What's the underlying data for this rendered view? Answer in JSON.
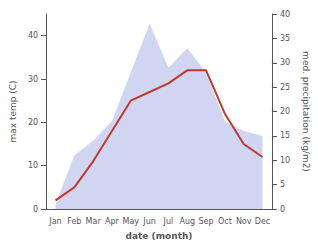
{
  "chart_data": {
    "type": "line",
    "xlabel": "date (month)",
    "ylabel": "max temp (C)",
    "y2label": "med. precipitation (kg/m2)",
    "categories": [
      "Jan",
      "Feb",
      "Mar",
      "Apr",
      "May",
      "Jun",
      "Jul",
      "Aug",
      "Sep",
      "Oct",
      "Nov",
      "Dec"
    ],
    "series": [
      {
        "type": "area",
        "axis": "y2",
        "color": "#aab4e8",
        "values": [
          1,
          11,
          14,
          18,
          28,
          38,
          29,
          33,
          28,
          18,
          16,
          15
        ]
      },
      {
        "type": "line",
        "color": "#c0392b",
        "values": [
          2,
          5,
          11,
          18,
          25,
          27,
          29,
          32,
          32,
          22,
          15,
          12
        ]
      }
    ],
    "ylim": [
      0,
      45
    ],
    "yticks": [
      0,
      10,
      20,
      30,
      40
    ],
    "y2lim": [
      0,
      40
    ],
    "y2ticks": [
      0,
      5,
      10,
      15,
      20,
      25,
      30,
      35,
      40
    ],
    "grid": false
  }
}
